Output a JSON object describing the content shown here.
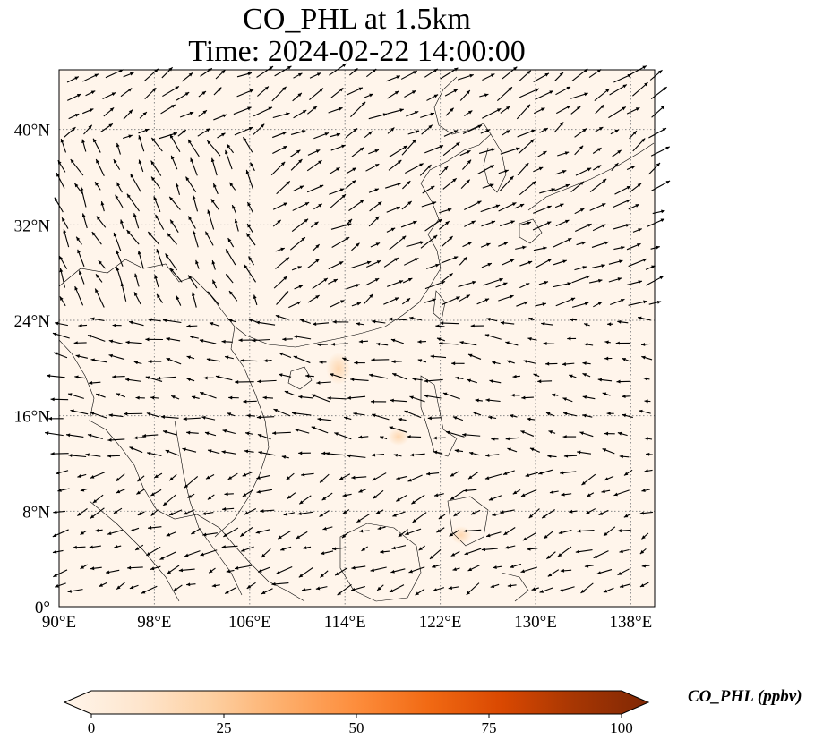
{
  "title": {
    "line1": "CO_PHL at 1.5km",
    "line2": "Time: 2024-02-22 14:00:00"
  },
  "map": {
    "extent": {
      "lon_min": 90,
      "lon_max": 140,
      "lat_min": 0,
      "lat_max": 45
    },
    "lon_ticks": [
      90,
      98,
      106,
      114,
      122,
      130,
      138
    ],
    "lon_tick_labels": [
      "90°E",
      "98°E",
      "106°E",
      "114°E",
      "122°E",
      "130°E",
      "138°E"
    ],
    "lat_ticks": [
      0,
      8,
      16,
      24,
      32,
      40
    ],
    "lat_tick_labels": [
      "0°",
      "8°N",
      "16°N",
      "24°N",
      "32°N",
      "40°N"
    ],
    "gridlines": true,
    "gridline_style": "dotted",
    "background_color": "#fff5eb",
    "vector_color": "#000000",
    "layer": "wind vectors over CO_PHL concentration field"
  },
  "colorbar": {
    "label": "CO_PHL (ppbv)",
    "min": 0,
    "max": 100,
    "ticks": [
      0,
      25,
      50,
      75,
      100
    ],
    "tick_labels": [
      "0",
      "25",
      "50",
      "75",
      "100"
    ],
    "colormap": "OrRd",
    "extend": "both",
    "colors": [
      "#fff5eb",
      "#fee6ce",
      "#fdd0a2",
      "#fdae6b",
      "#fd8d3c",
      "#f16913",
      "#d94801",
      "#a63603",
      "#7f2704"
    ]
  }
}
